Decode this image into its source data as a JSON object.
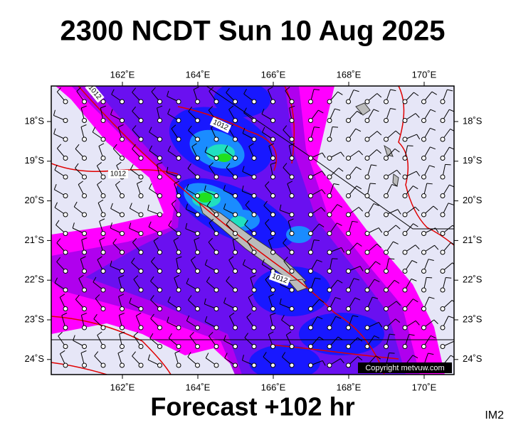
{
  "title": "2300 NCDT Sun 10 Aug 2025",
  "map": {
    "lon_labels": [
      "162˚E",
      "164˚E",
      "166˚E",
      "168˚E",
      "170˚E"
    ],
    "lat_labels": [
      "18˚S",
      "19˚S",
      "20˚S",
      "21˚S",
      "22˚S",
      "23˚S",
      "24˚S"
    ],
    "isobar_labels": [
      "1012",
      "1012",
      "1012",
      "1012"
    ],
    "copyright": "Copyright metvuw.com"
  },
  "footer": "Forecast +102 hr",
  "corner_label": "IM2"
}
